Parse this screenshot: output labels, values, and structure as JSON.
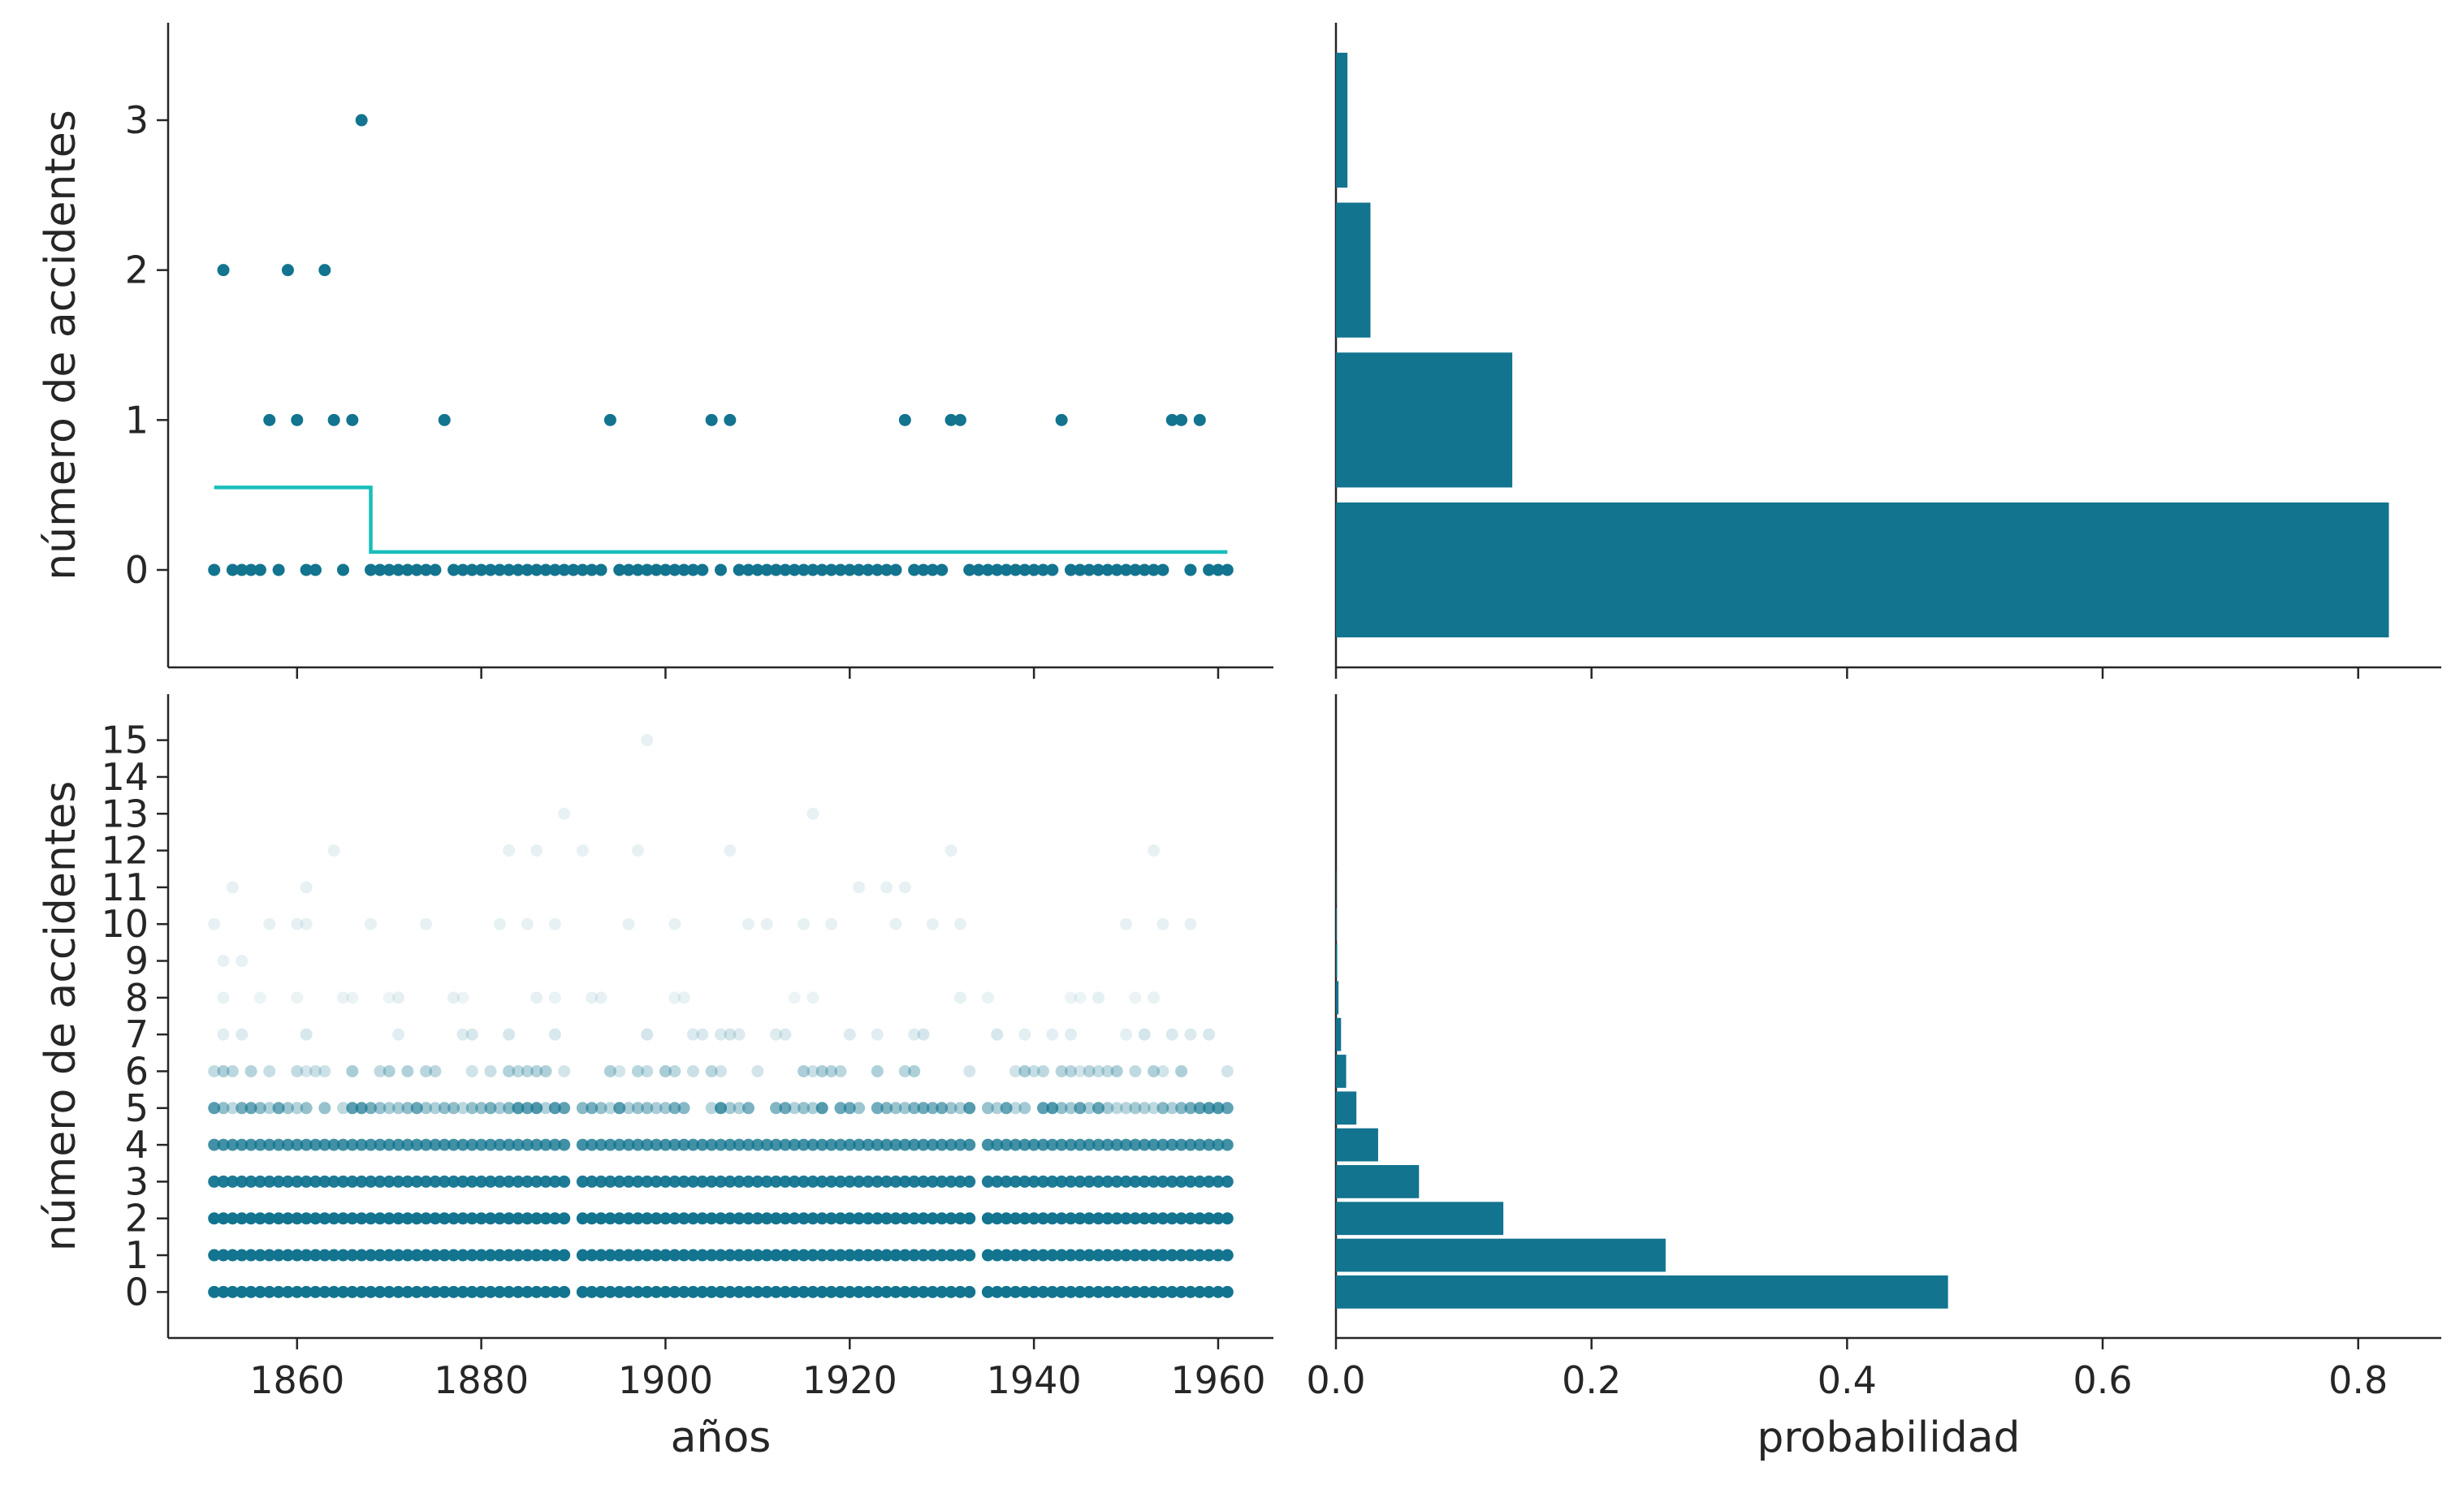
{
  "colors": {
    "points": "#12748f",
    "step_line": "#17bebb",
    "bars": "#12748f",
    "axes": "#262626"
  },
  "chart_data": [
    {
      "panel": "top-left",
      "type": "scatter",
      "title": "",
      "xlabel": "",
      "ylabel": "número de accidentes",
      "xlim": [
        1846,
        1966
      ],
      "ylim": [
        -0.65,
        3.65
      ],
      "xticks": [
        1860,
        1880,
        1900,
        1920,
        1940,
        1960
      ],
      "yticks": [
        0,
        1,
        2,
        3
      ],
      "ytick_labels": [
        "0",
        "1",
        "2",
        "3"
      ],
      "series": [
        {
          "type": "scatter",
          "x": [
            1851,
            1852,
            1853,
            1854,
            1855,
            1856,
            1857,
            1858,
            1859,
            1860,
            1861,
            1862,
            1863,
            1864,
            1865,
            1866,
            1867,
            1868,
            1869,
            1870,
            1871,
            1872,
            1873,
            1874,
            1875,
            1876,
            1877,
            1878,
            1879,
            1880,
            1881,
            1882,
            1883,
            1884,
            1885,
            1886,
            1887,
            1888,
            1889,
            1890,
            1891,
            1892,
            1893,
            1894,
            1895,
            1896,
            1897,
            1898,
            1899,
            1900,
            1901,
            1902,
            1903,
            1904,
            1905,
            1906,
            1907,
            1908,
            1909,
            1910,
            1911,
            1912,
            1913,
            1914,
            1915,
            1916,
            1917,
            1918,
            1919,
            1920,
            1921,
            1922,
            1923,
            1924,
            1925,
            1926,
            1927,
            1928,
            1929,
            1930,
            1931,
            1932,
            1933,
            1934,
            1935,
            1936,
            1937,
            1938,
            1939,
            1940,
            1941,
            1942,
            1943,
            1944,
            1945,
            1946,
            1947,
            1948,
            1949,
            1950,
            1951,
            1952,
            1953,
            1954,
            1955,
            1956,
            1957,
            1958,
            1959,
            1960,
            1961
          ],
          "y": [
            0,
            2,
            0,
            0,
            0,
            0,
            1,
            0,
            2,
            1,
            0,
            0,
            2,
            1,
            0,
            1,
            3,
            0,
            0,
            0,
            0,
            0,
            0,
            0,
            0,
            1,
            0,
            0,
            0,
            0,
            0,
            0,
            0,
            0,
            0,
            0,
            0,
            0,
            0,
            0,
            0,
            0,
            0,
            1,
            0,
            0,
            0,
            0,
            0,
            0,
            0,
            0,
            0,
            0,
            1,
            0,
            1,
            0,
            0,
            0,
            0,
            0,
            0,
            0,
            0,
            0,
            0,
            0,
            0,
            0,
            0,
            0,
            0,
            0,
            0,
            1,
            0,
            0,
            0,
            0,
            1,
            1,
            0,
            0,
            0,
            0,
            0,
            0,
            0,
            0,
            0,
            0,
            1,
            0,
            0,
            0,
            0,
            0,
            0,
            0,
            0,
            0,
            0,
            0,
            1,
            1,
            0,
            1,
            0,
            0,
            0
          ]
        },
        {
          "type": "step",
          "x": [
            1851,
            1868,
            1868,
            1961
          ],
          "y": [
            0.55,
            0.55,
            0.12,
            0.12
          ]
        }
      ]
    },
    {
      "panel": "top-right",
      "type": "bar",
      "orientation": "horizontal",
      "title": "",
      "xlabel": "",
      "ylabel": "",
      "xlim": [
        0,
        0.865
      ],
      "ylim": [
        -0.65,
        3.65
      ],
      "xticks": [
        0.0,
        0.2,
        0.4,
        0.6,
        0.8
      ],
      "categories": [
        0,
        1,
        2,
        3
      ],
      "values": [
        0.824,
        0.138,
        0.027,
        0.009
      ]
    },
    {
      "panel": "bottom-left",
      "type": "scatter",
      "title": "",
      "xlabel": "años",
      "ylabel": "número de accidentes",
      "xlim": [
        1846,
        1966
      ],
      "ylim": [
        -1.25,
        16.25
      ],
      "xticks": [
        1860,
        1880,
        1900,
        1920,
        1940,
        1960
      ],
      "xtick_labels": [
        "1860",
        "1880",
        "1900",
        "1920",
        "1940",
        "1960"
      ],
      "yticks": [
        0,
        1,
        2,
        3,
        4,
        5,
        6,
        7,
        8,
        9,
        10,
        11,
        12,
        13,
        14,
        15
      ],
      "ytick_labels": [
        "0",
        "1",
        "2",
        "3",
        "4",
        "5",
        "6",
        "7",
        "8",
        "9",
        "10",
        "11",
        "12",
        "13",
        "14",
        "15"
      ],
      "series": [
        {
          "type": "scatter",
          "name": "",
          "x_range": [
            1851,
            1961
          ],
          "gaps": [
            1890,
            1934
          ],
          "y_levels": [
            0,
            1,
            2,
            3,
            4,
            5,
            6,
            7,
            8,
            9,
            10,
            11,
            12,
            13,
            14,
            15
          ],
          "opacity_by_level": [
            1.0,
            1.0,
            1.0,
            0.95,
            0.8,
            0.55,
            0.35,
            0.22,
            0.15,
            0.12,
            0.1,
            0.09,
            0.08,
            0.08,
            0.08,
            0.08
          ],
          "sparse_points": [
            [
              1851,
              10
            ],
            [
              1852,
              9
            ],
            [
              1853,
              11
            ],
            [
              1854,
              9
            ],
            [
              1857,
              10
            ],
            [
              1860,
              10
            ],
            [
              1861,
              11
            ],
            [
              1861,
              10
            ],
            [
              1864,
              12
            ],
            [
              1868,
              10
            ],
            [
              1874,
              10
            ],
            [
              1882,
              10
            ],
            [
              1883,
              12
            ],
            [
              1885,
              10
            ],
            [
              1886,
              12
            ],
            [
              1888,
              10
            ],
            [
              1889,
              13
            ],
            [
              1891,
              12
            ],
            [
              1896,
              10
            ],
            [
              1897,
              12
            ],
            [
              1898,
              15
            ],
            [
              1901,
              10
            ],
            [
              1907,
              12
            ],
            [
              1909,
              10
            ],
            [
              1911,
              10
            ],
            [
              1915,
              10
            ],
            [
              1916,
              13
            ],
            [
              1918,
              10
            ],
            [
              1921,
              11
            ],
            [
              1924,
              11
            ],
            [
              1925,
              10
            ],
            [
              1926,
              11
            ],
            [
              1929,
              10
            ],
            [
              1931,
              12
            ],
            [
              1932,
              10
            ],
            [
              1950,
              10
            ],
            [
              1953,
              12
            ],
            [
              1954,
              10
            ],
            [
              1957,
              10
            ]
          ]
        }
      ]
    },
    {
      "panel": "bottom-right",
      "type": "bar",
      "orientation": "horizontal",
      "title": "",
      "xlabel": "probabilidad",
      "ylabel": "",
      "xlim": [
        0,
        0.865
      ],
      "ylim": [
        -1.25,
        16.25
      ],
      "xticks": [
        0.0,
        0.2,
        0.4,
        0.6,
        0.8
      ],
      "xtick_labels": [
        "0.0",
        "0.2",
        "0.4",
        "0.6",
        "0.8"
      ],
      "categories": [
        0,
        1,
        2,
        3,
        4,
        5,
        6,
        7,
        8,
        9,
        10,
        11,
        12,
        13,
        14,
        15
      ],
      "values": [
        0.479,
        0.258,
        0.131,
        0.065,
        0.033,
        0.016,
        0.008,
        0.004,
        0.002,
        0.001,
        0.0005,
        0.0002,
        0.0001,
        5e-05,
        2e-05,
        1e-05
      ]
    }
  ]
}
